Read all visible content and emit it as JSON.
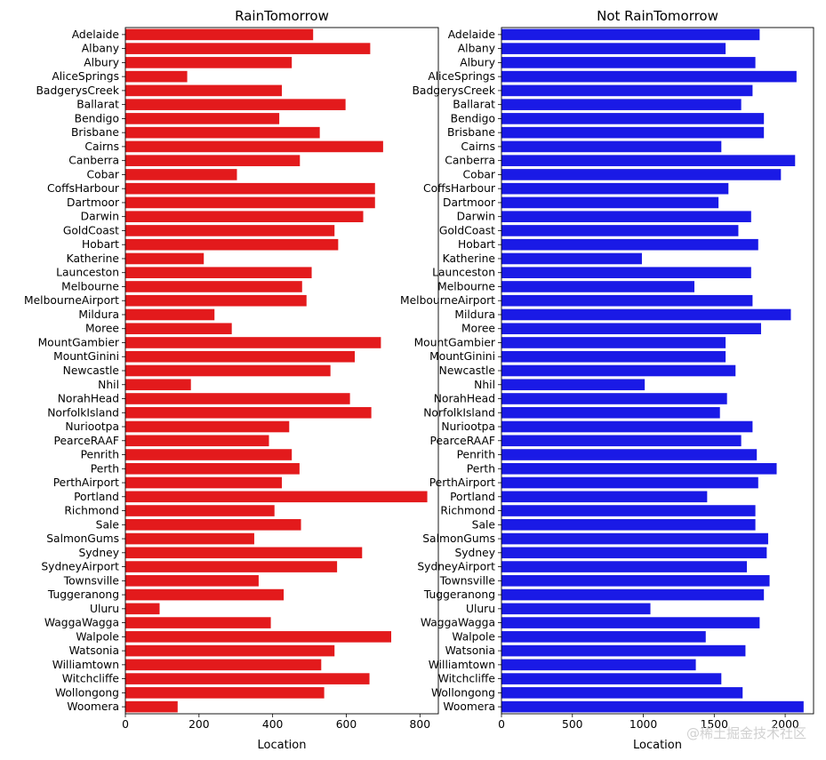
{
  "watermark": "@稀土掘金技术社区",
  "chart_data": [
    {
      "type": "bar",
      "orientation": "horizontal",
      "title": "RainTomorrow",
      "xlabel": "Location",
      "ylabel": "",
      "xlim": [
        0,
        850
      ],
      "xticks": [
        0,
        200,
        400,
        600,
        800
      ],
      "color": "#e31a1c",
      "grid": false,
      "categories": [
        "Adelaide",
        "Albany",
        "Albury",
        "AliceSprings",
        "BadgerysCreek",
        "Ballarat",
        "Bendigo",
        "Brisbane",
        "Cairns",
        "Canberra",
        "Cobar",
        "CoffsHarbour",
        "Dartmoor",
        "Darwin",
        "GoldCoast",
        "Hobart",
        "Katherine",
        "Launceston",
        "Melbourne",
        "MelbourneAirport",
        "Mildura",
        "Moree",
        "MountGambier",
        "MountGinini",
        "Newcastle",
        "Nhil",
        "NorahHead",
        "NorfolkIsland",
        "Nuriootpa",
        "PearceRAAF",
        "Penrith",
        "Perth",
        "PerthAirport",
        "Portland",
        "Richmond",
        "Sale",
        "SalmonGums",
        "Sydney",
        "SydneyAirport",
        "Townsville",
        "Tuggeranong",
        "Uluru",
        "WaggaWagga",
        "Walpole",
        "Watsonia",
        "Williamtown",
        "Witchcliffe",
        "Wollongong",
        "Woomera"
      ],
      "values": [
        510,
        665,
        452,
        168,
        425,
        598,
        418,
        528,
        700,
        474,
        303,
        678,
        678,
        646,
        568,
        578,
        213,
        506,
        480,
        492,
        242,
        289,
        694,
        623,
        557,
        178,
        610,
        668,
        445,
        390,
        452,
        473,
        425,
        820,
        405,
        477,
        350,
        643,
        575,
        362,
        430,
        93,
        395,
        722,
        568,
        532,
        663,
        540,
        142
      ]
    },
    {
      "type": "bar",
      "orientation": "horizontal",
      "title": "Not RainTomorrow",
      "xlabel": "Location",
      "ylabel": "",
      "xlim": [
        0,
        2200
      ],
      "xticks": [
        0,
        500,
        1000,
        1500,
        2000
      ],
      "color": "#1a1ae6",
      "grid": false,
      "categories": [
        "Adelaide",
        "Albany",
        "Albury",
        "AliceSprings",
        "BadgerysCreek",
        "Ballarat",
        "Bendigo",
        "Brisbane",
        "Cairns",
        "Canberra",
        "Cobar",
        "CoffsHarbour",
        "Dartmoor",
        "Darwin",
        "GoldCoast",
        "Hobart",
        "Katherine",
        "Launceston",
        "Melbourne",
        "MelbourneAirport",
        "Mildura",
        "Moree",
        "MountGambier",
        "MountGinini",
        "Newcastle",
        "Nhil",
        "NorahHead",
        "NorfolkIsland",
        "Nuriootpa",
        "PearceRAAF",
        "Penrith",
        "Perth",
        "PerthAirport",
        "Portland",
        "Richmond",
        "Sale",
        "SalmonGums",
        "Sydney",
        "SydneyAirport",
        "Townsville",
        "Tuggeranong",
        "Uluru",
        "WaggaWagga",
        "Walpole",
        "Watsonia",
        "Williamtown",
        "Witchcliffe",
        "Wollongong",
        "Woomera"
      ],
      "values": [
        1820,
        1580,
        1790,
        2080,
        1770,
        1690,
        1850,
        1850,
        1550,
        2070,
        1970,
        1600,
        1530,
        1760,
        1670,
        1810,
        990,
        1760,
        1360,
        1770,
        2040,
        1830,
        1580,
        1580,
        1650,
        1010,
        1590,
        1540,
        1770,
        1690,
        1800,
        1940,
        1810,
        1450,
        1790,
        1790,
        1880,
        1870,
        1730,
        1890,
        1850,
        1050,
        1820,
        1440,
        1720,
        1370,
        1550,
        1700,
        2130
      ]
    }
  ]
}
